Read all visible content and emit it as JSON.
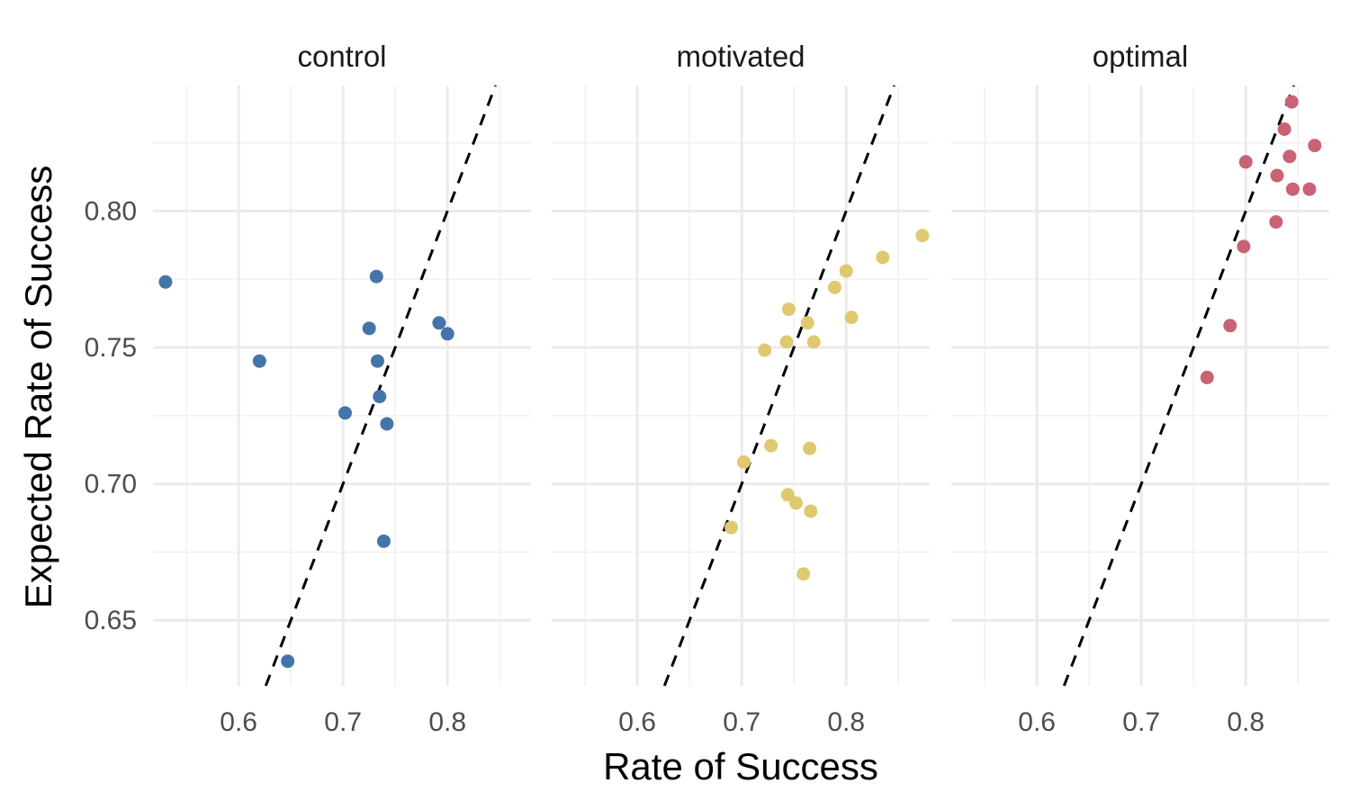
{
  "chart_data": {
    "type": "scatter",
    "xlabel": "Rate of Success",
    "ylabel": "Expected Rate of Success",
    "xlim": [
      0.518,
      0.88
    ],
    "ylim": [
      0.626,
      0.846
    ],
    "x_ticks": [
      0.6,
      0.7,
      0.8
    ],
    "x_tick_labels": [
      "0.6",
      "0.7",
      "0.8"
    ],
    "y_ticks": [
      0.65,
      0.7,
      0.75,
      0.8
    ],
    "y_tick_labels": [
      "0.65",
      "0.70",
      "0.75",
      "0.80"
    ],
    "grid": true,
    "legend": "none",
    "reference_line": {
      "type": "abline",
      "intercept": 0,
      "slope": 1,
      "style": "dashed"
    },
    "panels": [
      {
        "title": "control",
        "color": "#4575a8",
        "points": [
          {
            "x": 0.53,
            "y": 0.774
          },
          {
            "x": 0.62,
            "y": 0.745
          },
          {
            "x": 0.647,
            "y": 0.635
          },
          {
            "x": 0.702,
            "y": 0.726
          },
          {
            "x": 0.725,
            "y": 0.757
          },
          {
            "x": 0.732,
            "y": 0.776
          },
          {
            "x": 0.733,
            "y": 0.745
          },
          {
            "x": 0.735,
            "y": 0.732
          },
          {
            "x": 0.739,
            "y": 0.679
          },
          {
            "x": 0.742,
            "y": 0.722
          },
          {
            "x": 0.792,
            "y": 0.759
          },
          {
            "x": 0.8,
            "y": 0.755
          }
        ]
      },
      {
        "title": "motivated",
        "color": "#dfc970",
        "points": [
          {
            "x": 0.69,
            "y": 0.684
          },
          {
            "x": 0.702,
            "y": 0.708
          },
          {
            "x": 0.722,
            "y": 0.749
          },
          {
            "x": 0.728,
            "y": 0.714
          },
          {
            "x": 0.744,
            "y": 0.696
          },
          {
            "x": 0.743,
            "y": 0.752
          },
          {
            "x": 0.745,
            "y": 0.764
          },
          {
            "x": 0.752,
            "y": 0.693
          },
          {
            "x": 0.759,
            "y": 0.667
          },
          {
            "x": 0.763,
            "y": 0.759
          },
          {
            "x": 0.765,
            "y": 0.713
          },
          {
            "x": 0.766,
            "y": 0.69
          },
          {
            "x": 0.769,
            "y": 0.752
          },
          {
            "x": 0.789,
            "y": 0.772
          },
          {
            "x": 0.8,
            "y": 0.778
          },
          {
            "x": 0.805,
            "y": 0.761
          },
          {
            "x": 0.835,
            "y": 0.783
          },
          {
            "x": 0.873,
            "y": 0.791
          }
        ]
      },
      {
        "title": "optimal",
        "color": "#c96274",
        "points": [
          {
            "x": 0.763,
            "y": 0.739
          },
          {
            "x": 0.785,
            "y": 0.758
          },
          {
            "x": 0.798,
            "y": 0.787
          },
          {
            "x": 0.8,
            "y": 0.818
          },
          {
            "x": 0.829,
            "y": 0.796
          },
          {
            "x": 0.83,
            "y": 0.813
          },
          {
            "x": 0.837,
            "y": 0.83
          },
          {
            "x": 0.842,
            "y": 0.82
          },
          {
            "x": 0.844,
            "y": 0.84
          },
          {
            "x": 0.845,
            "y": 0.808
          },
          {
            "x": 0.861,
            "y": 0.808
          },
          {
            "x": 0.866,
            "y": 0.824
          }
        ]
      }
    ]
  }
}
